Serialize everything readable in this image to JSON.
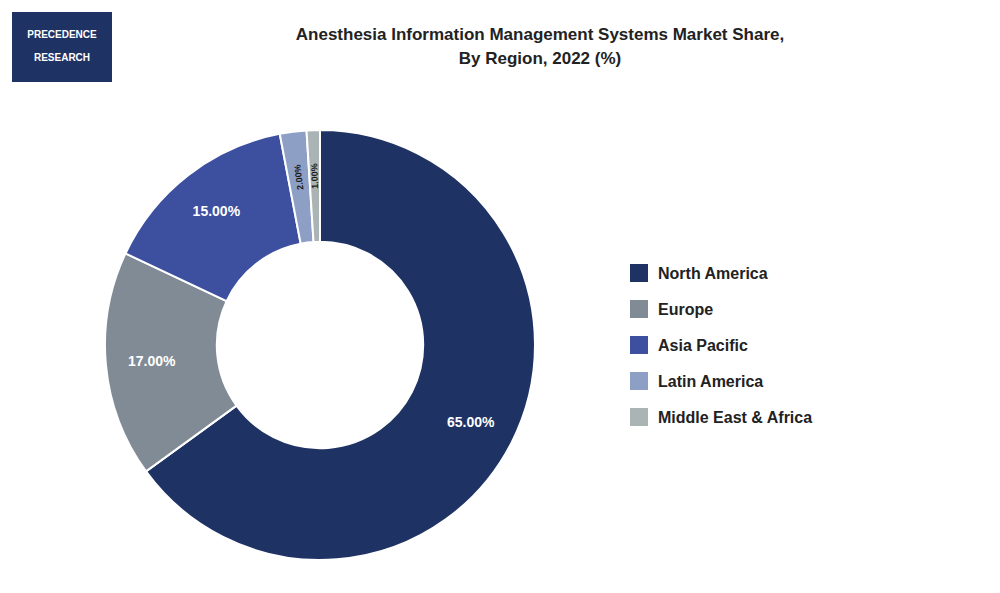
{
  "chart_data": {
    "type": "donut",
    "title": "Anesthesia Information Management Systems Market Share,\nBy Region, 2022 (%)",
    "categories": [
      "North America",
      "Europe",
      "Asia Pacific",
      "Latin America",
      "Middle East & Africa"
    ],
    "values": [
      65.0,
      17.0,
      15.0,
      2.0,
      1.0
    ],
    "value_labels": [
      "65.00%",
      "17.00%",
      "15.00%",
      "2.00%",
      "1.00%"
    ],
    "colors": [
      "#1e3264",
      "#808b96",
      "#3d4f9f",
      "#8e9fc5",
      "#aab4b4"
    ],
    "data_labels": true,
    "legend": "right",
    "annotations": [
      "PRECEDENCE",
      "RESEARCH"
    ]
  }
}
